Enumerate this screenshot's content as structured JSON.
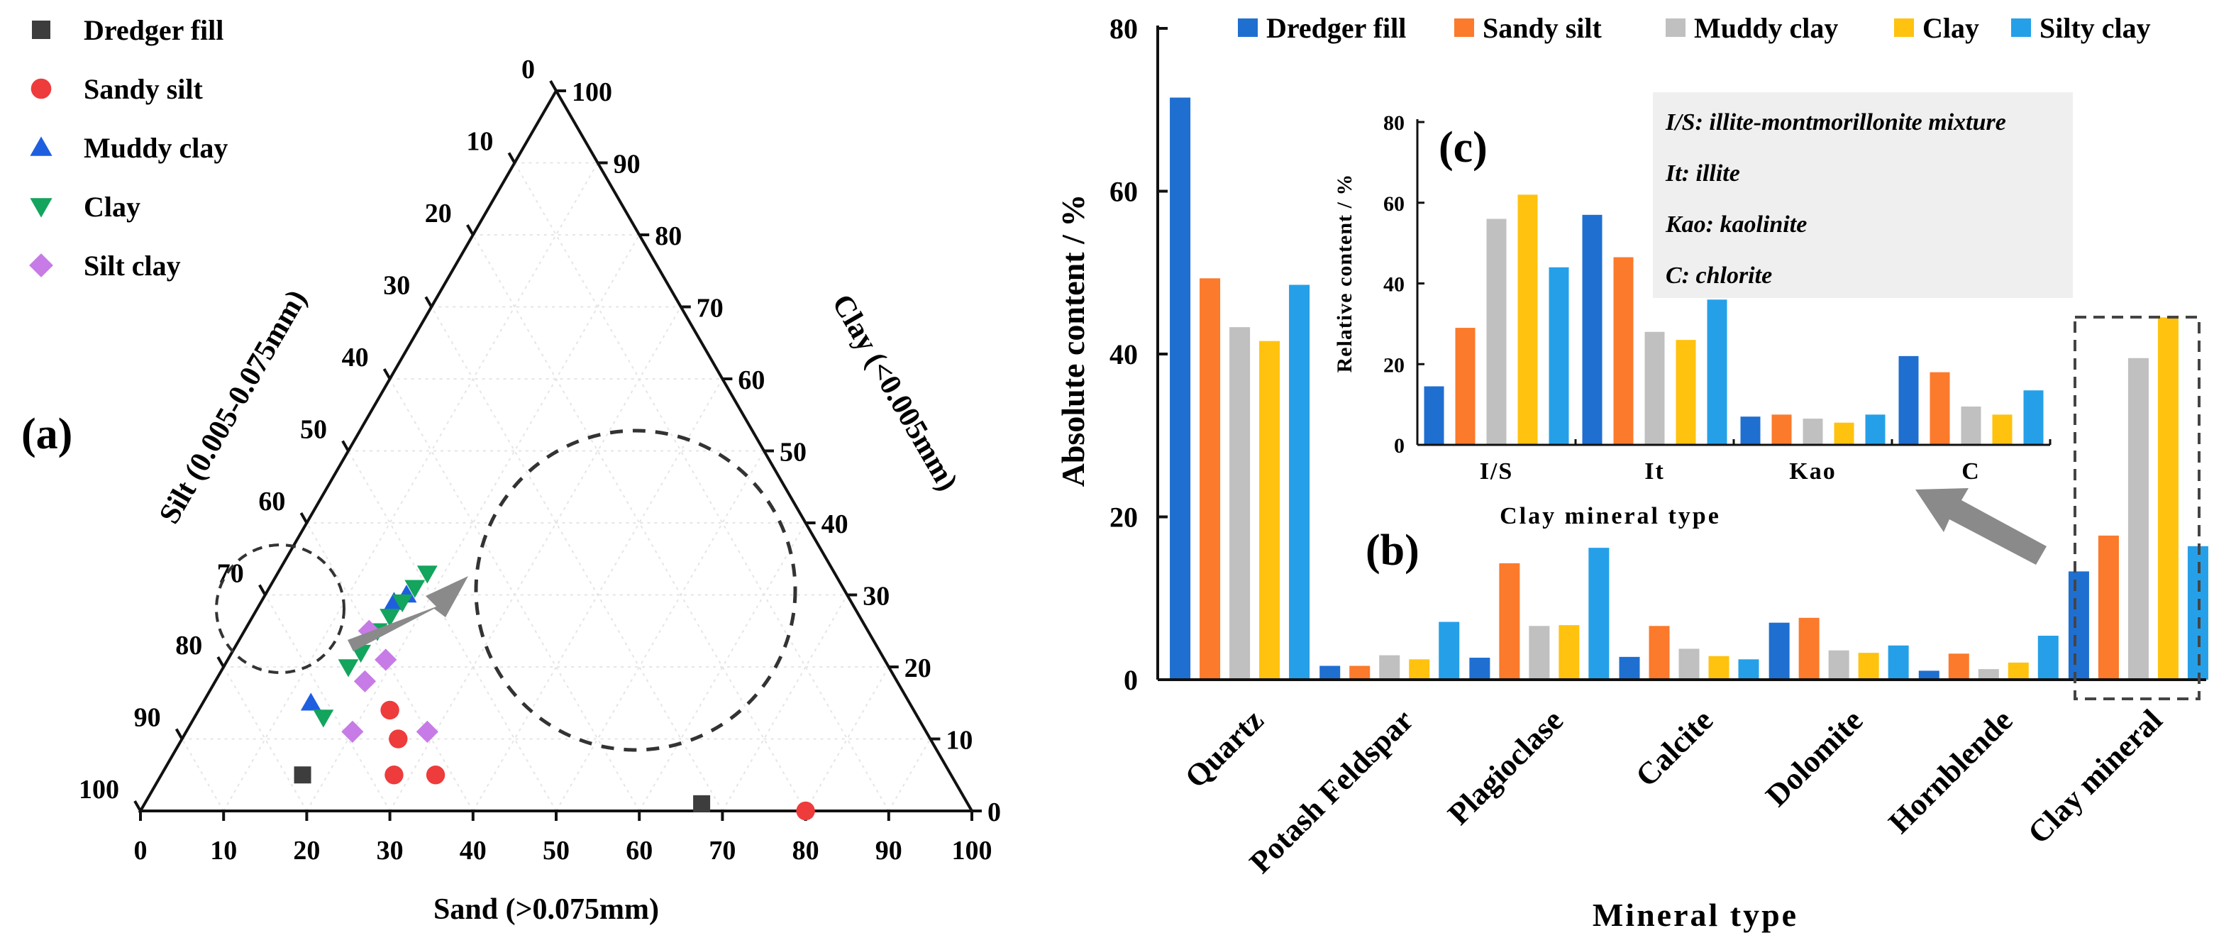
{
  "colors": {
    "dredger_fill": "#1f6fd1",
    "sandy_silt": "#fb7a2c",
    "muddy_clay": "#c0c0c0",
    "clay": "#ffc20e",
    "silty_clay": "#25a0e8",
    "tern_dredger": "#3d3d3d",
    "tern_sandy": "#ee3b3b",
    "tern_muddy": "#1e5fe0",
    "tern_clay": "#13a45d",
    "tern_silt": "#c77be6"
  },
  "chart_data": [
    {
      "id": "a",
      "panel_label": "(a)",
      "type": "scatter",
      "subtype": "ternary",
      "axes": {
        "bottom": {
          "label": "Sand (>0.075mm)",
          "ticks": [
            "0",
            "10",
            "20",
            "30",
            "40",
            "50",
            "60",
            "70",
            "80",
            "90",
            "100"
          ]
        },
        "left": {
          "label": "Silt (0.005-0.075mm)",
          "ticks": [
            "0",
            "10",
            "20",
            "30",
            "40",
            "50",
            "60",
            "70",
            "80",
            "90",
            "100"
          ]
        },
        "right": {
          "label": "Clay (<0.005mm)",
          "ticks": [
            "0",
            "10",
            "20",
            "30",
            "40",
            "50",
            "60",
            "70",
            "80",
            "90",
            "100"
          ]
        }
      },
      "legend": [
        "Dredger fill",
        "Sandy silt",
        "Muddy clay",
        "Clay",
        "Silt clay"
      ],
      "series": [
        {
          "name": "Dredger fill",
          "marker": "square",
          "points": [
            [
              17,
              5,
              78
            ],
            [
              67,
              1,
              32
            ]
          ]
        },
        {
          "name": "Sandy silt",
          "marker": "circle",
          "points": [
            [
              23,
              14,
              63
            ],
            [
              26,
              10,
              64
            ],
            [
              28,
              5,
              67
            ],
            [
              33,
              5,
              62
            ],
            [
              80,
              0,
              20
            ]
          ]
        },
        {
          "name": "Muddy clay",
          "marker": "triangle-up",
          "points": [
            [
              17,
              30,
              53
            ],
            [
              16,
              29,
              55
            ],
            [
              13,
              15,
              72
            ]
          ]
        },
        {
          "name": "Clay",
          "marker": "triangle-down",
          "points": [
            [
              18,
              33,
              49
            ],
            [
              17.5,
              31,
              51.5
            ],
            [
              17,
              29,
              54
            ],
            [
              16.5,
              27,
              56.5
            ],
            [
              16,
              25,
              59
            ],
            [
              15.5,
              22,
              62.5
            ],
            [
              15,
              20,
              65
            ],
            [
              15.5,
              13,
              71.5
            ]
          ]
        },
        {
          "name": "Silt clay",
          "marker": "diamond",
          "points": [
            [
              15,
              25,
              60
            ],
            [
              19,
              21,
              60
            ],
            [
              18,
              18,
              64
            ],
            [
              20,
              11,
              69
            ],
            [
              29,
              11,
              60
            ]
          ]
        }
      ],
      "annotations": [
        "zoom circle with arrow showing magnified cluster"
      ]
    },
    {
      "id": "b",
      "panel_label": "(b)",
      "type": "bar",
      "xlabel": "Mineral type",
      "ylabel": "Absolute content / %",
      "ylim": [
        0,
        80
      ],
      "yticks": [
        "0",
        "20",
        "40",
        "60",
        "80"
      ],
      "categories": [
        "Quartz",
        "Potash Feldspar",
        "Plagioclase",
        "Calcite",
        "Dolomite",
        "Hornblende",
        "Clay mineral"
      ],
      "series": [
        {
          "name": "Dredger fill",
          "values": [
            71.5,
            1.7,
            2.7,
            2.8,
            7.0,
            1.1,
            13.3
          ]
        },
        {
          "name": "Sandy silt",
          "values": [
            49.3,
            1.7,
            14.3,
            6.6,
            7.6,
            3.2,
            17.7
          ]
        },
        {
          "name": "Muddy clay",
          "values": [
            43.3,
            3.0,
            6.6,
            3.8,
            3.6,
            1.3,
            39.5
          ]
        },
        {
          "name": "Clay",
          "values": [
            41.6,
            2.5,
            6.7,
            2.9,
            3.3,
            2.1,
            44.5
          ]
        },
        {
          "name": "Silty clay",
          "values": [
            48.5,
            7.1,
            16.2,
            2.5,
            4.2,
            5.4,
            16.4
          ]
        }
      ],
      "legend": [
        "Dredger fill",
        "Sandy silt",
        "Muddy clay",
        "Clay",
        "Silty clay"
      ],
      "annotations": [
        "dashed box around Clay mineral group with arrow pointing to inset (c)"
      ]
    },
    {
      "id": "c",
      "panel_label": "(c)",
      "type": "bar",
      "xlabel": "Clay mineral type",
      "ylabel": "Relative content / %",
      "ylim": [
        0,
        80
      ],
      "yticks": [
        "0",
        "20",
        "40",
        "60",
        "80"
      ],
      "categories": [
        "I/S",
        "It",
        "Kao",
        "C"
      ],
      "series": [
        {
          "name": "Dredger fill",
          "values": [
            14.5,
            57,
            7,
            22
          ]
        },
        {
          "name": "Sandy silt",
          "values": [
            29,
            46.5,
            7.5,
            18
          ]
        },
        {
          "name": "Muddy clay",
          "values": [
            56,
            28,
            6.5,
            9.5
          ]
        },
        {
          "name": "Clay",
          "values": [
            62,
            26,
            5.5,
            7.5
          ]
        },
        {
          "name": "Silty clay",
          "values": [
            44,
            36,
            7.5,
            13.5
          ]
        }
      ],
      "notes": [
        "I/S: illite-montmorillonite mixture",
        "It:   illite",
        "Kao: kaolinite",
        "C:  chlorite"
      ]
    }
  ]
}
